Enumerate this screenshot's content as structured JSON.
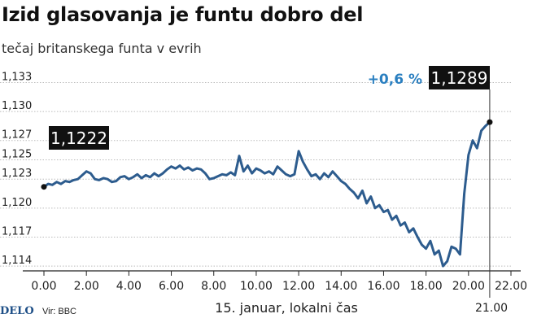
{
  "title": "Izid glasovanja je funtu dobro del",
  "subtitle": "tečaj britanskega funta v evrih",
  "footer": {
    "brand": "DELO",
    "source": "Vir: BBC"
  },
  "colors": {
    "line": "#2d5c8e",
    "change": "#2a7fc0",
    "label_bg": "#111111",
    "grid": "#bbbbbb"
  },
  "chart_data": {
    "type": "line",
    "title": "Izid glasovanja je funtu dobro del",
    "subtitle": "tečaj britanskega funta v evrih",
    "xlabel": "15. januar, lokalni čas",
    "ylabel": "",
    "xlim": [
      0,
      22
    ],
    "ylim": [
      1.1135,
      1.1343
    ],
    "x_ticks": [
      0,
      2,
      4,
      6,
      8,
      10,
      12,
      14,
      16,
      18,
      20,
      22
    ],
    "x_tick_labels": [
      "0.00",
      "2.00",
      "4.00",
      "6.00",
      "8.00",
      "10.00",
      "12.00",
      "14.00",
      "16.00",
      "18.00",
      "20.00",
      "22.00"
    ],
    "y_ticks": [
      1.114,
      1.117,
      1.12,
      1.123,
      1.125,
      1.127,
      1.13,
      1.133
    ],
    "y_tick_labels": [
      "1,114",
      "1,117",
      "1,120",
      "1,123",
      "1,125",
      "1,127",
      "1,130",
      "1,133"
    ],
    "grid": true,
    "annotations": {
      "start_label": "1,1222",
      "end_label": "1,1289",
      "change": "+0,6 %",
      "end_time_label": "21.00"
    },
    "series": [
      {
        "x": [
          0,
          0.2,
          0.4,
          0.6,
          0.8,
          1.0,
          1.2,
          1.4,
          1.6,
          1.8,
          2.0,
          2.2,
          2.4,
          2.6,
          2.8,
          3.0,
          3.2,
          3.4,
          3.6,
          3.8,
          4.0,
          4.2,
          4.4,
          4.6,
          4.8,
          5.0,
          5.2,
          5.4,
          5.6,
          5.8,
          6.0,
          6.2,
          6.4,
          6.6,
          6.8,
          7.0,
          7.2,
          7.4,
          7.6,
          7.8,
          8.0,
          8.2,
          8.4,
          8.6,
          8.8,
          9.0,
          9.2,
          9.4,
          9.6,
          9.8,
          10.0,
          10.2,
          10.4,
          10.6,
          10.8,
          11.0,
          11.2,
          11.4,
          11.6,
          11.8,
          12.0,
          12.2,
          12.4,
          12.6,
          12.8,
          13.0,
          13.2,
          13.4,
          13.6,
          13.8,
          14.0,
          14.2,
          14.4,
          14.6,
          14.8,
          15.0,
          15.2,
          15.4,
          15.6,
          15.8,
          16.0,
          16.2,
          16.4,
          16.6,
          16.8,
          17.0,
          17.2,
          17.4,
          17.6,
          17.8,
          18.0,
          18.2,
          18.4,
          18.6,
          18.8,
          19.0,
          19.2,
          19.4,
          19.6,
          19.8,
          20.0,
          20.2,
          20.4,
          20.6,
          20.8,
          21.0
        ],
        "values": [
          1.1222,
          1.1225,
          1.1224,
          1.1227,
          1.1225,
          1.1228,
          1.1227,
          1.1229,
          1.123,
          1.1234,
          1.1238,
          1.1236,
          1.123,
          1.1229,
          1.1231,
          1.123,
          1.1227,
          1.1228,
          1.1232,
          1.1233,
          1.123,
          1.1232,
          1.1235,
          1.1231,
          1.1234,
          1.1232,
          1.1236,
          1.1233,
          1.1236,
          1.124,
          1.1243,
          1.1241,
          1.1244,
          1.124,
          1.1242,
          1.1239,
          1.1241,
          1.124,
          1.1236,
          1.123,
          1.1231,
          1.1233,
          1.1235,
          1.1234,
          1.1237,
          1.1234,
          1.1254,
          1.1238,
          1.1244,
          1.1236,
          1.1241,
          1.1239,
          1.1236,
          1.1238,
          1.1235,
          1.1243,
          1.1239,
          1.1235,
          1.1233,
          1.1235,
          1.1259,
          1.1248,
          1.124,
          1.1233,
          1.1235,
          1.123,
          1.1236,
          1.1232,
          1.1238,
          1.1233,
          1.1228,
          1.1225,
          1.122,
          1.1216,
          1.121,
          1.1218,
          1.1205,
          1.1212,
          1.12,
          1.1203,
          1.1196,
          1.1198,
          1.1188,
          1.1192,
          1.1182,
          1.1185,
          1.1175,
          1.1179,
          1.117,
          1.1162,
          1.1158,
          1.1166,
          1.1152,
          1.1156,
          1.114,
          1.1145,
          1.116,
          1.1158,
          1.1152,
          1.1215,
          1.1255,
          1.127,
          1.1262,
          1.128,
          1.1285,
          1.1289
        ]
      }
    ]
  }
}
